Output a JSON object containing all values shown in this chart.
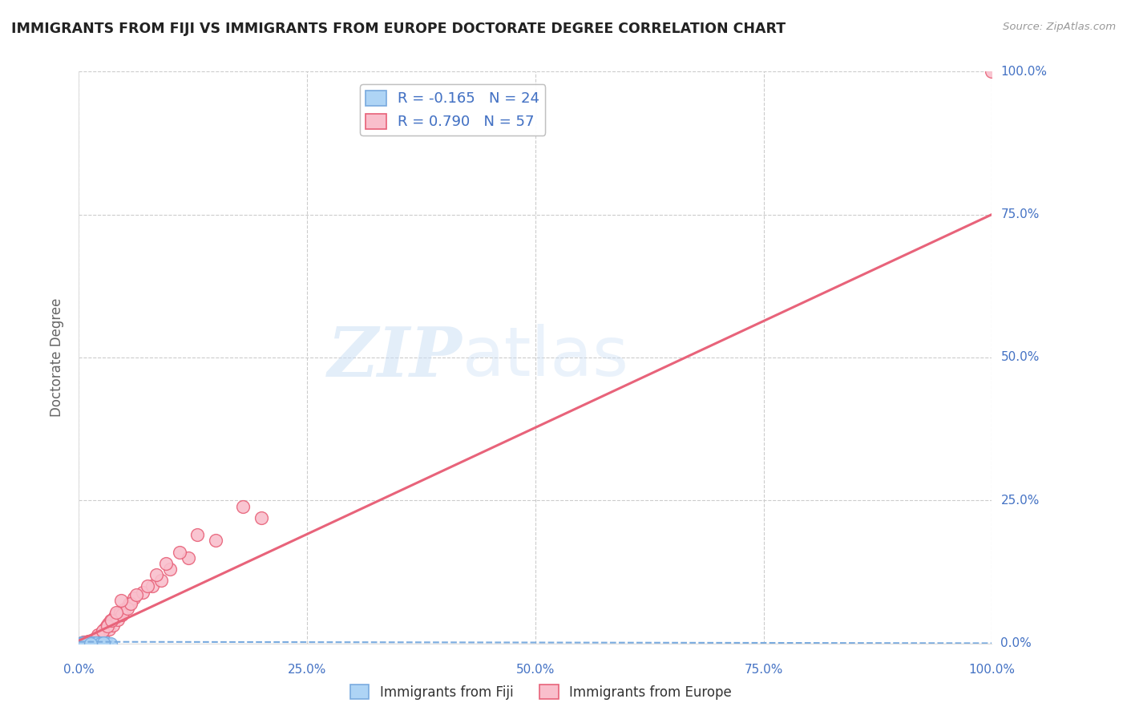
{
  "title": "IMMIGRANTS FROM FIJI VS IMMIGRANTS FROM EUROPE DOCTORATE DEGREE CORRELATION CHART",
  "source": "Source: ZipAtlas.com",
  "ylabel": "Doctorate Degree",
  "xlim": [
    0,
    100
  ],
  "ylim": [
    0,
    100
  ],
  "xticks": [
    0,
    25,
    50,
    75,
    100
  ],
  "yticks": [
    0,
    25,
    50,
    75,
    100
  ],
  "xtick_labels": [
    "0.0%",
    "25.0%",
    "50.0%",
    "75.0%",
    "100.0%"
  ],
  "ytick_labels": [
    "0.0%",
    "25.0%",
    "50.0%",
    "75.0%",
    "100.0%"
  ],
  "grid_color": "#cccccc",
  "background_color": "#ffffff",
  "fiji_color": "#aed4f5",
  "europe_color": "#f9bfcc",
  "fiji_R": -0.165,
  "fiji_N": 24,
  "europe_R": 0.79,
  "europe_N": 57,
  "fiji_line_color": "#7aabdf",
  "europe_line_color": "#e8637a",
  "legend_label_fiji": "Immigrants from Fiji",
  "legend_label_europe": "Immigrants from Europe",
  "watermark_zip": "ZIP",
  "watermark_atlas": "atlas",
  "annotation_color": "#4472c4",
  "axis_label_color": "#666666",
  "title_color": "#222222",
  "fiji_x": [
    0.3,
    0.5,
    0.8,
    1.0,
    1.2,
    1.4,
    1.6,
    1.8,
    2.0,
    2.2,
    2.5,
    2.8,
    3.0,
    3.5,
    0.4,
    0.7,
    1.1,
    1.5,
    1.9,
    2.3,
    2.7,
    0.2,
    0.6,
    1.3
  ],
  "fiji_y": [
    0.05,
    0.08,
    0.05,
    0.1,
    0.06,
    0.05,
    0.08,
    0.04,
    0.07,
    0.05,
    0.06,
    0.04,
    0.05,
    0.03,
    0.06,
    0.04,
    0.07,
    0.05,
    0.06,
    0.04,
    0.05,
    0.03,
    0.06,
    0.04
  ],
  "europe_x": [
    0.5,
    0.8,
    1.0,
    1.2,
    1.5,
    1.8,
    2.0,
    2.2,
    2.5,
    2.8,
    3.0,
    3.2,
    3.5,
    3.8,
    4.0,
    4.5,
    5.0,
    5.5,
    6.0,
    7.0,
    8.0,
    9.0,
    10.0,
    12.0,
    15.0,
    20.0,
    0.3,
    0.6,
    0.9,
    1.3,
    1.7,
    2.3,
    2.7,
    3.3,
    3.7,
    4.3,
    4.7,
    5.3,
    5.7,
    6.3,
    7.5,
    8.5,
    9.5,
    11.0,
    13.0,
    18.0,
    0.4,
    0.7,
    1.1,
    1.6,
    2.1,
    2.6,
    3.1,
    3.6,
    4.1,
    4.6,
    100.0
  ],
  "europe_y": [
    0.2,
    0.3,
    0.4,
    0.3,
    0.5,
    0.8,
    1.0,
    1.5,
    2.0,
    2.5,
    3.0,
    3.5,
    4.0,
    4.5,
    5.0,
    5.5,
    6.0,
    7.0,
    8.0,
    9.0,
    10.0,
    11.0,
    13.0,
    15.0,
    18.0,
    22.0,
    0.1,
    0.2,
    0.3,
    0.4,
    0.6,
    1.2,
    1.8,
    2.5,
    3.2,
    4.2,
    5.0,
    6.2,
    7.0,
    8.5,
    10.0,
    12.0,
    14.0,
    16.0,
    19.0,
    24.0,
    0.15,
    0.25,
    0.35,
    0.7,
    1.5,
    2.2,
    3.0,
    4.0,
    5.5,
    7.5,
    100.0
  ],
  "europe_line_x0": 0,
  "europe_line_y0": 0.5,
  "europe_line_x1": 100,
  "europe_line_y1": 75.0,
  "fiji_line_x0": 0,
  "fiji_line_y0": 0.3,
  "fiji_line_x1": 100,
  "fiji_line_y1": 0.05
}
